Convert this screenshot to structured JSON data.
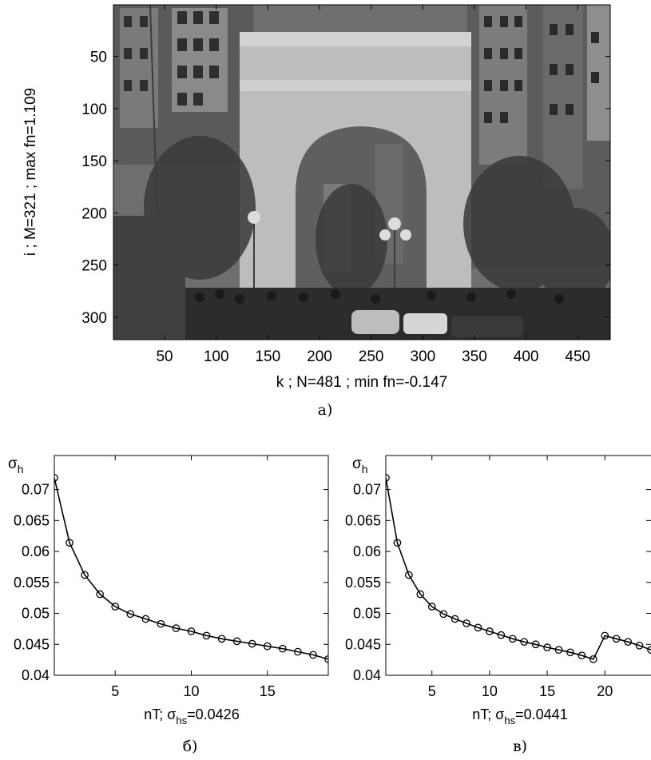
{
  "chart_data": [
    {
      "type": "heatmap",
      "panel_label": "а)",
      "content": "grayscale photograph of a triumphal arch in a city square",
      "xlabel": "k ; N=481 ; min fn=-0.147",
      "ylabel": "i ; M=321 ; max fn=1.109",
      "x_ticks": [
        50,
        100,
        150,
        200,
        250,
        300,
        350,
        400,
        450
      ],
      "y_ticks": [
        50,
        100,
        150,
        200,
        250,
        300
      ],
      "xlim": [
        0.5,
        481.5
      ],
      "ylim": [
        0.5,
        321.5
      ],
      "y_reversed": true
    },
    {
      "type": "line",
      "panel_label": "б)",
      "ylabel_symbol": "σ",
      "ylabel_sub": "h",
      "xlabel_prefix": "nT; σ",
      "xlabel_sub": "hs",
      "xlabel_value": "=0.0426",
      "x_ticks": [
        5,
        10,
        15
      ],
      "y_ticks": [
        0.04,
        0.045,
        0.05,
        0.055,
        0.06,
        0.065,
        0.07
      ],
      "y_tick_labels": [
        "0.04",
        "0.045",
        "0.05",
        "0.055",
        "0.06",
        "0.065",
        "0.07"
      ],
      "xlim": [
        1,
        19
      ],
      "ylim": [
        0.04,
        0.0755
      ],
      "x": [
        1,
        2,
        3,
        4,
        5,
        6,
        7,
        8,
        9,
        10,
        11,
        12,
        13,
        14,
        15,
        16,
        17,
        18,
        19
      ],
      "y": [
        0.0719,
        0.0614,
        0.0562,
        0.0531,
        0.0511,
        0.0499,
        0.0491,
        0.0483,
        0.0476,
        0.0471,
        0.0464,
        0.0459,
        0.0455,
        0.0451,
        0.0447,
        0.0443,
        0.0438,
        0.0433,
        0.0426
      ],
      "marker": "circle"
    },
    {
      "type": "line",
      "panel_label": "в)",
      "ylabel_symbol": "σ",
      "ylabel_sub": "h",
      "xlabel_prefix": "nT; σ",
      "xlabel_sub": "hs",
      "xlabel_value": "=0.0441",
      "x_ticks": [
        5,
        10,
        15,
        20
      ],
      "y_ticks": [
        0.04,
        0.045,
        0.05,
        0.055,
        0.06,
        0.065,
        0.07
      ],
      "y_tick_labels": [
        "0.04",
        "0.045",
        "0.05",
        "0.055",
        "0.06",
        "0.065",
        "0.07"
      ],
      "xlim": [
        1,
        24
      ],
      "ylim": [
        0.04,
        0.0755
      ],
      "x": [
        1,
        2,
        3,
        4,
        5,
        6,
        7,
        8,
        9,
        10,
        11,
        12,
        13,
        14,
        15,
        16,
        17,
        18,
        19,
        20,
        21,
        22,
        23,
        24
      ],
      "y": [
        0.0719,
        0.0614,
        0.0562,
        0.0531,
        0.0511,
        0.0499,
        0.0491,
        0.0484,
        0.0477,
        0.0471,
        0.0465,
        0.0459,
        0.0454,
        0.045,
        0.0445,
        0.0441,
        0.0437,
        0.0432,
        0.0426,
        0.0464,
        0.0459,
        0.0454,
        0.0448,
        0.0441
      ],
      "marker": "circle"
    }
  ]
}
